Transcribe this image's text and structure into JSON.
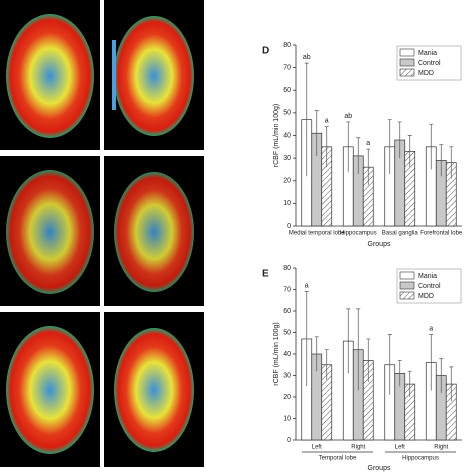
{
  "chart_data": [
    {
      "type": "bar",
      "panel": "D",
      "ylabel": "rCBF (mL/min 100g)",
      "xlabel": "Groups",
      "categories": [
        "Medial temporal lobe",
        "Hippocampus",
        "Basal ganglia",
        "Forefrontal lobe"
      ],
      "series": [
        {
          "name": "Mania",
          "color": "#ffffff",
          "values": [
            47,
            35,
            35,
            35
          ],
          "errors": [
            25,
            11,
            12,
            10
          ]
        },
        {
          "name": "Control",
          "color": "#c8c8c8",
          "values": [
            41,
            31,
            38,
            29
          ],
          "errors": [
            10,
            8,
            8,
            7
          ]
        },
        {
          "name": "MDD",
          "color": "#ffffff",
          "pattern": "hatch",
          "values": [
            35,
            26,
            33,
            28
          ],
          "errors": [
            9,
            8,
            7,
            7
          ]
        }
      ],
      "annotations": [
        {
          "text": "ab",
          "category": 0,
          "series": 0
        },
        {
          "text": "a",
          "category": 0,
          "series": 2
        },
        {
          "text": "ab",
          "category": 1,
          "series": 0
        },
        {
          "text": "a",
          "category": 1,
          "series": 2
        }
      ],
      "ylim": [
        0,
        80
      ],
      "yticks": [
        0,
        10,
        20,
        30,
        40,
        50,
        60,
        70,
        80
      ],
      "legend": "upper right"
    },
    {
      "type": "bar",
      "panel": "E",
      "ylabel": "rCBF (mL/min 100g)",
      "xlabel": "Groups",
      "categories": [
        "Left",
        "Right",
        "Left",
        "Right"
      ],
      "category_groups": [
        "Temporal lobe",
        "Temporal lobe",
        "Hippocampus",
        "Hippocampus"
      ],
      "series": [
        {
          "name": "Mania",
          "color": "#ffffff",
          "values": [
            47,
            46,
            35,
            36
          ],
          "errors": [
            22,
            15,
            14,
            13
          ]
        },
        {
          "name": "Control",
          "color": "#c8c8c8",
          "values": [
            40,
            42,
            31,
            30
          ],
          "errors": [
            8,
            19,
            6,
            8
          ]
        },
        {
          "name": "MDD",
          "color": "#ffffff",
          "pattern": "hatch",
          "values": [
            35,
            37,
            26,
            26
          ],
          "errors": [
            7,
            10,
            6,
            8
          ]
        }
      ],
      "annotations": [
        {
          "text": "a",
          "category": 0,
          "series": 0
        },
        {
          "text": "a",
          "category": 3,
          "series": 0
        }
      ],
      "ylim": [
        0,
        80
      ],
      "yticks": [
        0,
        10,
        20,
        30,
        40,
        50,
        60,
        70,
        80
      ],
      "legend": "upper right"
    }
  ]
}
